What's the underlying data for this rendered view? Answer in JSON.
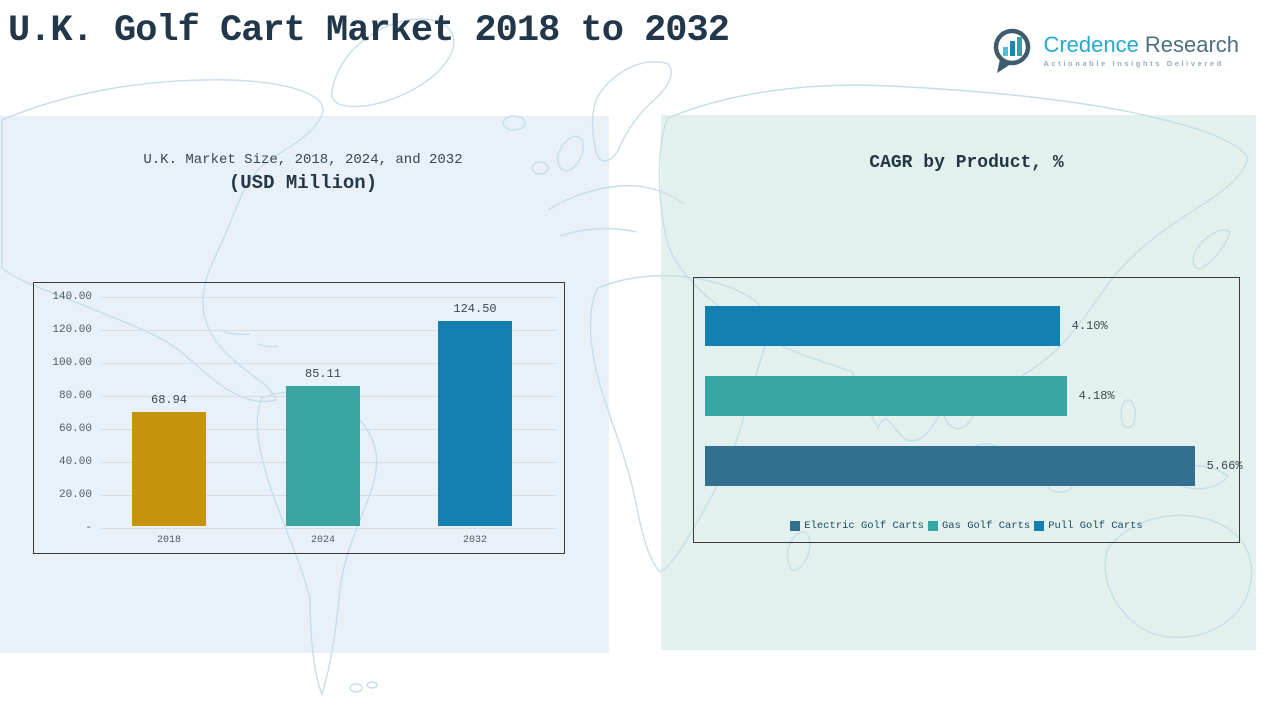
{
  "header": {
    "title": "U.K. Golf Cart Market 2018 to 2032"
  },
  "logo": {
    "brand_primary": "Credence",
    "brand_secondary": "Research",
    "tagline": "Actionable Insights Delivered",
    "primary_color": "#29A8CA",
    "secondary_color": "#4D6F7F"
  },
  "theme": {
    "left_panel_bg": "#E9F1F8",
    "right_panel_bg": "#E2F1EE",
    "map_stroke": "#C6DEE9",
    "title_color": "#22384A"
  },
  "chart_data": [
    {
      "id": "market-size",
      "type": "bar",
      "title": "U.K. Market Size, 2018, 2024, and 2032",
      "subtitle": "(USD Million)",
      "categories": [
        "2018",
        "2024",
        "2032"
      ],
      "values": [
        68.94,
        85.11,
        124.5
      ],
      "value_labels": [
        "68.94",
        "85.11",
        "124.50"
      ],
      "bar_colors": [
        "#C6930E",
        "#3AA6A1",
        "#1480B1"
      ],
      "xlabel": "",
      "ylabel": "",
      "ylim": [
        0,
        140
      ],
      "ytick_labels": [
        "140.00",
        "120.00",
        "100.00",
        "80.00",
        "60.00",
        "40.00",
        "20.00",
        "-"
      ],
      "grid": true,
      "legend_position": "none"
    },
    {
      "id": "cagr-by-product",
      "type": "bar-horizontal",
      "title": "CAGR by Product, %",
      "bars": [
        {
          "name": "Pull Golf Carts",
          "value": 4.1,
          "label": "4.10%",
          "color": "#1480B1"
        },
        {
          "name": "Gas Golf Carts",
          "value": 4.18,
          "label": "4.18%",
          "color": "#3AA6A1"
        },
        {
          "name": "Electric Golf Carts",
          "value": 5.66,
          "label": "5.66%",
          "color": "#33708F"
        }
      ],
      "xlim": [
        0,
        6.3
      ],
      "grid": false,
      "legend_position": "bottom",
      "legend": [
        {
          "label": "Electric Golf Carts",
          "color": "#33708F"
        },
        {
          "label": "Gas Golf Carts",
          "color": "#3AA6A1"
        },
        {
          "label": "Pull Golf Carts",
          "color": "#1480B1"
        }
      ]
    }
  ]
}
